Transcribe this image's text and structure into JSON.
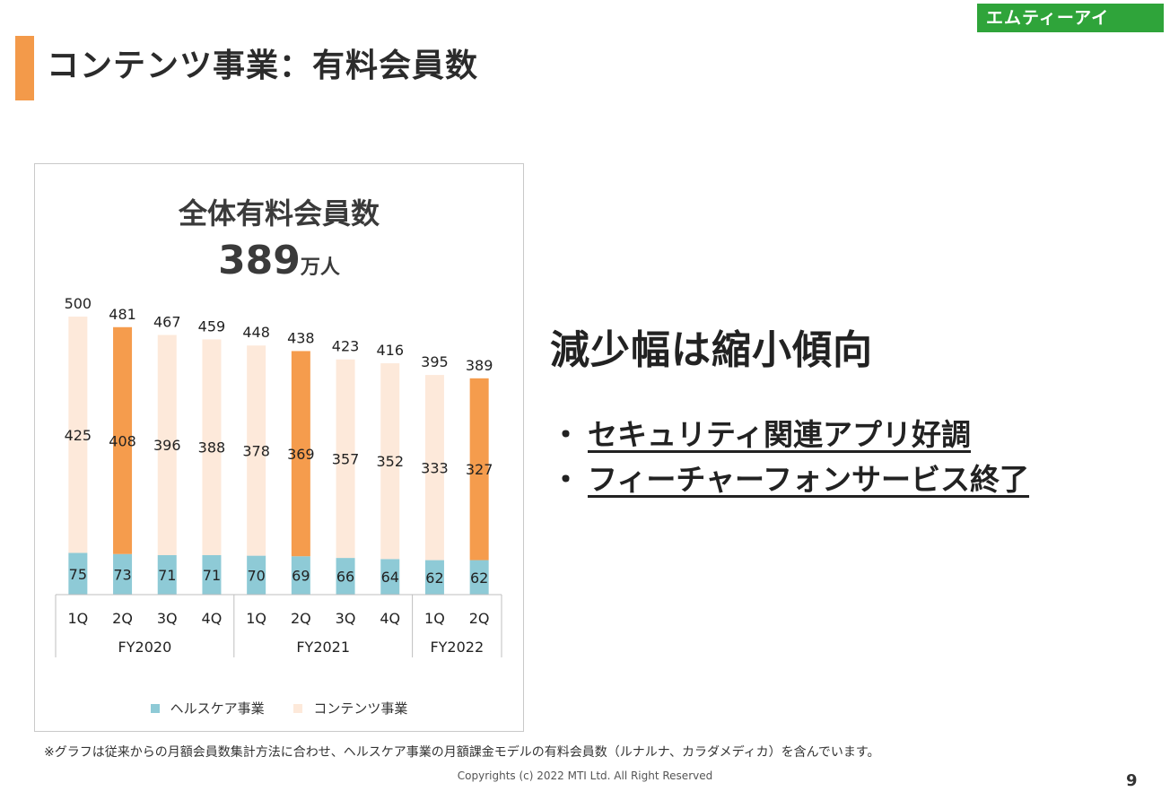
{
  "page": {
    "title": "コンテンツ事業：有料会員数",
    "logo": "エムティーアイ",
    "headline": "減少幅は縮小傾向",
    "bullets": [
      "セキュリティ関連アプリ好調",
      "フィーチャーフォンサービス終了"
    ],
    "bullet_mark": "・",
    "footnote": "※グラフは従来からの月額会員数集計方法に合わせ、ヘルスケア事業の月額課金モデルの有料会員数（ルナルナ、カラダメディカ）を含んでいます。",
    "copyright": "Copyrights (c) 2022 MTI Ltd. All Right Reserved",
    "page_number": "9"
  },
  "chart_data": {
    "type": "bar",
    "stacked": true,
    "title": "全体有料会員数",
    "total_value": "389",
    "total_unit": "万人",
    "categories": [
      "1Q",
      "2Q",
      "3Q",
      "4Q",
      "1Q",
      "2Q",
      "3Q",
      "4Q",
      "1Q",
      "2Q"
    ],
    "groups": [
      {
        "label": "FY2020",
        "count": 4
      },
      {
        "label": "FY2021",
        "count": 4
      },
      {
        "label": "FY2022",
        "count": 2
      }
    ],
    "series": [
      {
        "name": "ヘルスケア事業",
        "values": [
          75,
          73,
          71,
          71,
          70,
          69,
          66,
          64,
          62,
          62
        ]
      },
      {
        "name": "コンテンツ事業",
        "values": [
          425,
          408,
          396,
          388,
          378,
          369,
          357,
          352,
          333,
          327
        ]
      }
    ],
    "totals": [
      500,
      481,
      467,
      459,
      448,
      438,
      423,
      416,
      395,
      389
    ],
    "highlighted_categories": [
      1,
      5,
      9
    ],
    "colors": {
      "healthcare": "#8ecad6",
      "contents": "#fde9da",
      "contents_highlight": "#f59c4d",
      "accent": "#f39a4a",
      "logo": "#2fa43a"
    },
    "ylim": [
      0,
      500
    ],
    "legend": "bottom",
    "grid": false
  }
}
